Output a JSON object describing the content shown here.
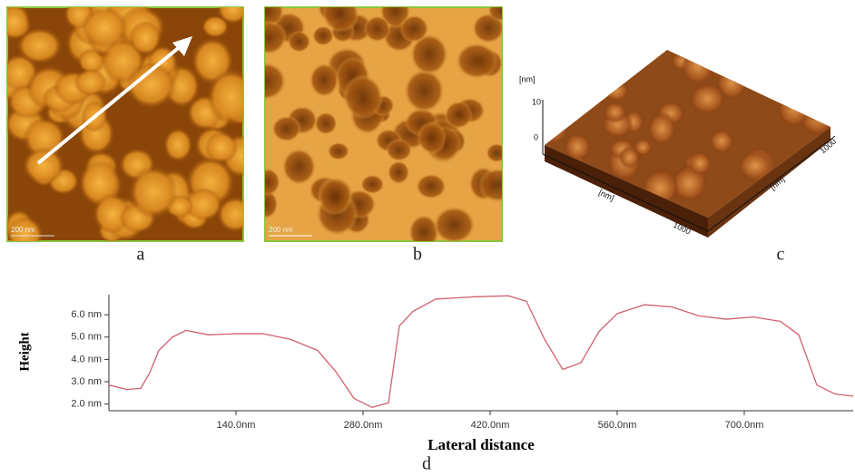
{
  "panels": [
    {
      "label": "a",
      "scale_bar": "200 nm"
    },
    {
      "label": "b",
      "scale_bar": "200 nm"
    },
    {
      "label": "c",
      "z_unit": "[nm]",
      "z_ticks": [
        "10",
        "0"
      ],
      "x_unit": "[nm]",
      "x_end": "1000",
      "y_unit": "[nm]",
      "y_end": "1000"
    }
  ],
  "chart_data": {
    "type": "line",
    "panel_label": "d",
    "xlabel": "Lateral distance",
    "ylabel": "Height",
    "x": [
      0,
      20,
      35,
      45,
      55,
      70,
      85,
      110,
      140,
      170,
      200,
      230,
      250,
      270,
      290,
      308,
      320,
      335,
      360,
      400,
      440,
      460,
      480,
      500,
      520,
      540,
      560,
      590,
      620,
      650,
      680,
      710,
      740,
      760,
      780,
      800,
      820
    ],
    "values": [
      2.85,
      2.65,
      2.7,
      3.4,
      4.4,
      5.0,
      5.3,
      5.1,
      5.15,
      5.15,
      4.9,
      4.4,
      3.45,
      2.25,
      1.85,
      2.05,
      5.5,
      6.15,
      6.7,
      6.8,
      6.85,
      6.6,
      4.9,
      3.55,
      3.85,
      5.25,
      6.05,
      6.45,
      6.35,
      5.95,
      5.8,
      5.9,
      5.7,
      5.1,
      2.85,
      2.45,
      2.35
    ],
    "color": "#d0606e",
    "xlim": [
      0,
      820
    ],
    "ylim": [
      1.7,
      6.9
    ],
    "xticks": [
      {
        "value": 140,
        "label": "140.0nm"
      },
      {
        "value": 280,
        "label": "280.0nm"
      },
      {
        "value": 420,
        "label": "420.0nm"
      },
      {
        "value": 560,
        "label": "560.0nm"
      },
      {
        "value": 700,
        "label": "700.0nm"
      }
    ],
    "yticks": [
      {
        "value": 2,
        "label": "2.0 nm"
      },
      {
        "value": 3,
        "label": "3.0 nm"
      },
      {
        "value": 4,
        "label": "4.0 nm"
      },
      {
        "value": 5,
        "label": "5.0 nm"
      },
      {
        "value": 6,
        "label": "6.0 nm"
      }
    ]
  }
}
